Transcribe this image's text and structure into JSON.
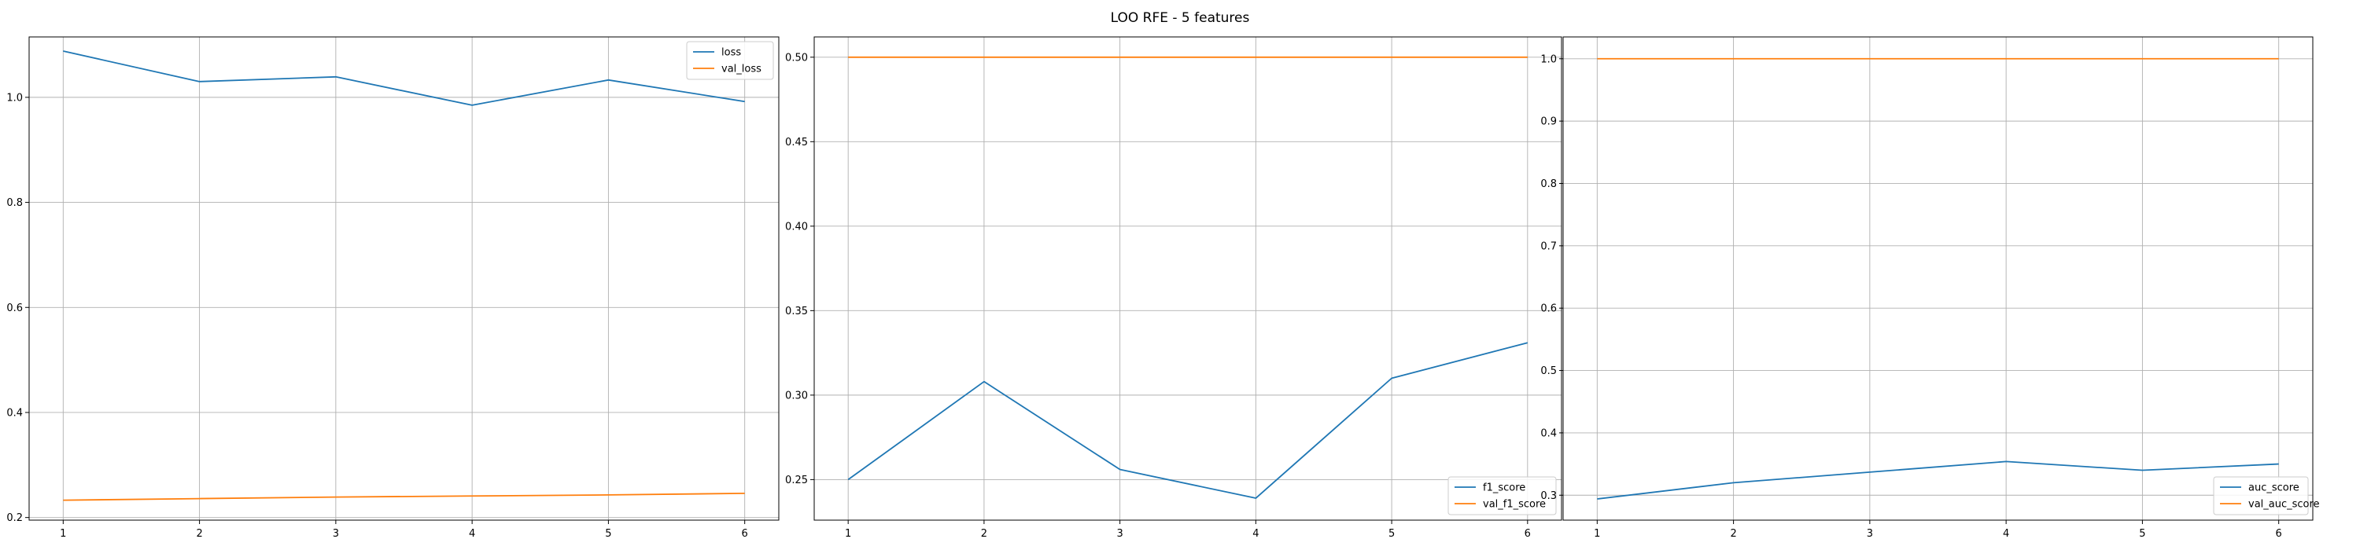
{
  "figure": {
    "title": "LOO RFE - 5 features"
  },
  "chart_data": [
    {
      "type": "line",
      "x": [
        1,
        2,
        3,
        4,
        5,
        6
      ],
      "xticks": [
        1,
        2,
        3,
        4,
        5,
        6
      ],
      "yticks": [
        0.2,
        0.4,
        0.6,
        0.8,
        1.0
      ],
      "ytick_labels": [
        "0.2",
        "0.4",
        "0.6",
        "0.8",
        "1.0"
      ],
      "ylim": [
        0.195,
        1.115
      ],
      "xlim": [
        0.75,
        6.25
      ],
      "grid": true,
      "legend_position": "top-right",
      "series": [
        {
          "name": "loss",
          "color": "#1f77b4",
          "values": [
            1.088,
            1.03,
            1.039,
            0.985,
            1.033,
            0.992
          ]
        },
        {
          "name": "val_loss",
          "color": "#ff7f0e",
          "values": [
            0.233,
            0.236,
            0.239,
            0.241,
            0.243,
            0.246
          ]
        }
      ]
    },
    {
      "type": "line",
      "x": [
        1,
        2,
        3,
        4,
        5,
        6
      ],
      "xticks": [
        1,
        2,
        3,
        4,
        5,
        6
      ],
      "yticks": [
        0.25,
        0.3,
        0.35,
        0.4,
        0.45,
        0.5
      ],
      "ytick_labels": [
        "0.25",
        "0.30",
        "0.35",
        "0.40",
        "0.45",
        "0.50"
      ],
      "ylim": [
        0.226,
        0.512
      ],
      "xlim": [
        0.75,
        6.25
      ],
      "grid": true,
      "legend_position": "bottom-right",
      "series": [
        {
          "name": "f1_score",
          "color": "#1f77b4",
          "values": [
            0.25,
            0.308,
            0.256,
            0.239,
            0.31,
            0.331
          ]
        },
        {
          "name": "val_f1_score",
          "color": "#ff7f0e",
          "values": [
            0.5,
            0.5,
            0.5,
            0.5,
            0.5,
            0.5
          ]
        }
      ]
    },
    {
      "type": "line",
      "x": [
        1,
        2,
        3,
        4,
        5,
        6
      ],
      "xticks": [
        1,
        2,
        3,
        4,
        5,
        6
      ],
      "yticks": [
        0.3,
        0.4,
        0.5,
        0.6,
        0.7,
        0.8,
        0.9,
        1.0
      ],
      "ytick_labels": [
        "0.3",
        "0.4",
        "0.5",
        "0.6",
        "0.7",
        "0.8",
        "0.9",
        "1.0"
      ],
      "ylim": [
        0.26,
        1.035
      ],
      "xlim": [
        0.75,
        6.25
      ],
      "grid": true,
      "legend_position": "bottom-right",
      "series": [
        {
          "name": "auc_score",
          "color": "#1f77b4",
          "values": [
            0.294,
            0.32,
            0.337,
            0.354,
            0.34,
            0.35
          ]
        },
        {
          "name": "val_auc_score",
          "color": "#ff7f0e",
          "values": [
            1.0,
            1.0,
            1.0,
            1.0,
            1.0,
            1.0
          ]
        }
      ]
    }
  ]
}
